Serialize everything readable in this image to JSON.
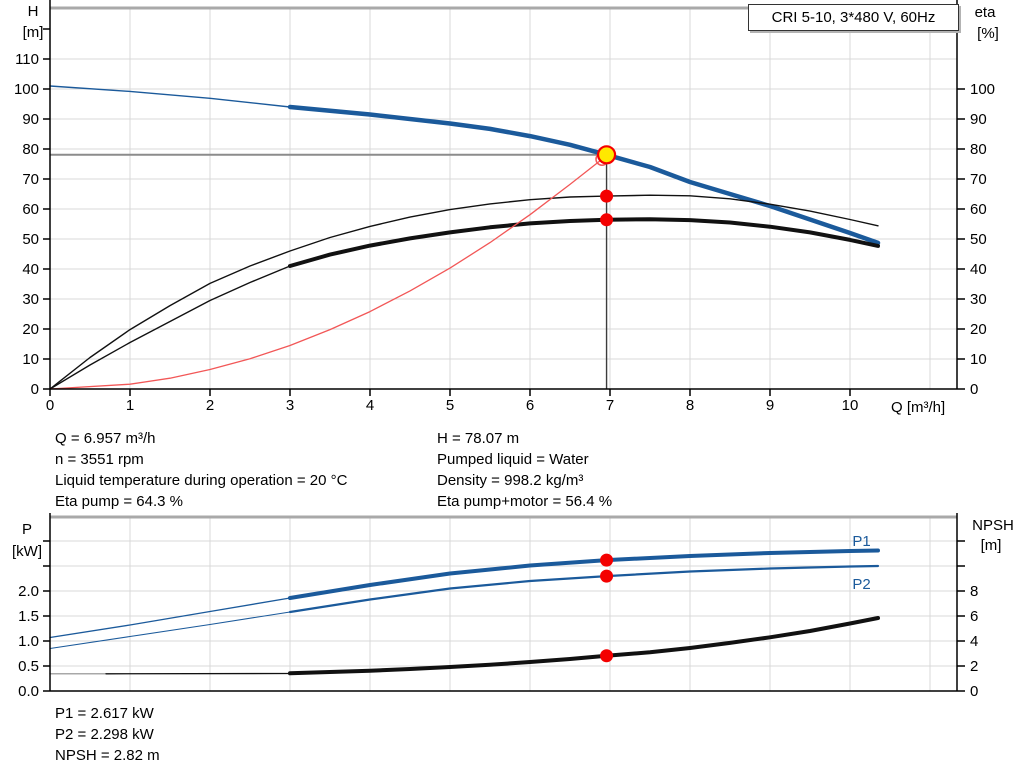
{
  "title_box": {
    "label": "CRI 5-10, 3*480 V, 60Hz"
  },
  "colors": {
    "curve_blue": "#1b5a9b",
    "curve_black": "#111111",
    "curve_red": "#f25757",
    "dot_red": "#f40000",
    "duty_yellow": "#ffe800",
    "grid": "#d8d8d8",
    "axis": "#000000",
    "crosshair_h": "#8c8c8c",
    "crosshair_v": "#3c3c3c",
    "top_border": "#a9a9a9"
  },
  "chart_data": [
    {
      "id": "head-chart",
      "type": "line",
      "title": "CRI 5-10, 3*480 V, 60Hz",
      "x_axis": {
        "label": "Q [m³/h]",
        "range": [
          0,
          11.3375
        ],
        "ticks": [
          [
            "0",
            0
          ],
          [
            "1",
            1
          ],
          [
            "2",
            2
          ],
          [
            "3",
            3
          ],
          [
            "4",
            4
          ],
          [
            "5",
            5
          ],
          [
            "6",
            6
          ],
          [
            "7",
            7
          ],
          [
            "8",
            8
          ],
          [
            "9",
            9
          ],
          [
            "10",
            10
          ]
        ],
        "grid_values": [
          1,
          2,
          3,
          4,
          5,
          6,
          7,
          8,
          9,
          10,
          11
        ]
      },
      "y_left": {
        "label_lines": [
          "H",
          "[m]"
        ],
        "range": [
          0,
          127
        ],
        "ticks": [
          [
            "0",
            0
          ],
          [
            "10",
            10
          ],
          [
            "20",
            20
          ],
          [
            "30",
            30
          ],
          [
            "40",
            40
          ],
          [
            "50",
            50
          ],
          [
            "60",
            60
          ],
          [
            "70",
            70
          ],
          [
            "80",
            80
          ],
          [
            "90",
            90
          ],
          [
            "100",
            100
          ],
          [
            "110",
            110
          ]
        ],
        "minor_ticks": [
          120
        ],
        "grid_values": [
          10,
          20,
          30,
          40,
          50,
          60,
          70,
          80,
          90,
          100,
          110
        ]
      },
      "y_right": {
        "label_lines": [
          "eta",
          "[%]"
        ],
        "range": [
          0,
          127
        ],
        "ticks": [
          [
            "0",
            0
          ],
          [
            "10",
            10
          ],
          [
            "20",
            20
          ],
          [
            "30",
            30
          ],
          [
            "40",
            40
          ],
          [
            "50",
            50
          ],
          [
            "60",
            60
          ],
          [
            "70",
            70
          ],
          [
            "80",
            80
          ],
          [
            "90",
            90
          ],
          [
            "100",
            100
          ]
        ],
        "minor_ticks": []
      },
      "series": [
        {
          "name": "pump-curve-thin",
          "axis": "left",
          "color_key": "curve_blue",
          "width": 1.4,
          "points": [
            [
              0,
              101
            ],
            [
              1,
              99.2
            ],
            [
              2,
              96.9
            ],
            [
              3,
              94
            ]
          ]
        },
        {
          "name": "pump-curve",
          "axis": "left",
          "color_key": "curve_blue",
          "width": 4.5,
          "points": [
            [
              3,
              94
            ],
            [
              4,
              91.5
            ],
            [
              5,
              88.5
            ],
            [
              5.5,
              86.7
            ],
            [
              6,
              84.3
            ],
            [
              6.5,
              81.4
            ],
            [
              6.957,
              78.07
            ],
            [
              7.5,
              74
            ],
            [
              8,
              69
            ],
            [
              8.5,
              65
            ],
            [
              9,
              61
            ],
            [
              9.5,
              56.5
            ],
            [
              10,
              52
            ],
            [
              10.35,
              48.7
            ]
          ]
        },
        {
          "name": "eta-pump-curve",
          "axis": "right",
          "color_key": "curve_black",
          "width": 1.4,
          "points": [
            [
              0,
              0
            ],
            [
              0.5,
              10.5
            ],
            [
              1,
              19.8
            ],
            [
              1.5,
              27.8
            ],
            [
              2,
              35.2
            ],
            [
              2.5,
              41
            ],
            [
              3,
              46
            ],
            [
              3.5,
              50.5
            ],
            [
              4,
              54.2
            ],
            [
              4.5,
              57.3
            ],
            [
              5,
              59.8
            ],
            [
              5.5,
              61.7
            ],
            [
              6,
              63.1
            ],
            [
              6.5,
              64
            ],
            [
              6.957,
              64.3
            ],
            [
              7.5,
              64.6
            ],
            [
              8,
              64.4
            ],
            [
              8.5,
              63.4
            ],
            [
              9,
              61.6
            ],
            [
              9.5,
              59.3
            ],
            [
              10,
              56.5
            ],
            [
              10.35,
              54.4
            ]
          ]
        },
        {
          "name": "eta-pump-motor-curve-thin",
          "axis": "right",
          "color_key": "curve_black",
          "width": 1.4,
          "points": [
            [
              0,
              0
            ],
            [
              0.5,
              8
            ],
            [
              1,
              15.5
            ],
            [
              1.5,
              22.5
            ],
            [
              2,
              29.5
            ],
            [
              2.5,
              35.5
            ],
            [
              3,
              41
            ]
          ]
        },
        {
          "name": "eta-pump-motor-curve",
          "axis": "right",
          "color_key": "curve_black",
          "width": 4,
          "points": [
            [
              3,
              41
            ],
            [
              3.5,
              44.8
            ],
            [
              4,
              47.8
            ],
            [
              4.5,
              50.2
            ],
            [
              5,
              52.2
            ],
            [
              5.5,
              53.9
            ],
            [
              6,
              55.2
            ],
            [
              6.5,
              56
            ],
            [
              6.957,
              56.4
            ],
            [
              7.5,
              56.6
            ],
            [
              8,
              56.3
            ],
            [
              8.5,
              55.5
            ],
            [
              9,
              54.1
            ],
            [
              9.5,
              52.2
            ],
            [
              10,
              49.7
            ],
            [
              10.35,
              47.7
            ]
          ]
        },
        {
          "name": "system-curve",
          "axis": "left",
          "color_key": "curve_red",
          "width": 1.3,
          "points": [
            [
              0,
              0
            ],
            [
              1,
              1.6
            ],
            [
              1.5,
              3.6
            ],
            [
              2,
              6.5
            ],
            [
              2.5,
              10.1
            ],
            [
              3,
              14.5
            ],
            [
              3.5,
              19.8
            ],
            [
              4,
              25.8
            ],
            [
              4.5,
              32.7
            ],
            [
              5,
              40.3
            ],
            [
              5.5,
              48.8
            ],
            [
              6,
              58.1
            ],
            [
              6.5,
              68.2
            ],
            [
              6.9,
              76.6
            ]
          ]
        }
      ],
      "crosshair": {
        "q": 6.957,
        "v": 78.07
      },
      "markers": [
        {
          "name": "system-curve-end-ring",
          "shape": "ring",
          "axis": "left",
          "q": 6.9,
          "v": 76.6,
          "r": 6,
          "stroke_key": "curve_red",
          "sw": 1.5
        },
        {
          "name": "duty-point",
          "shape": "dot",
          "axis": "left",
          "q": 6.957,
          "v": 78.07,
          "r": 8.5,
          "fill_key": "duty_yellow",
          "stroke_key": "dot_red",
          "sw": 2.2
        },
        {
          "name": "eta-pump-operating-dot",
          "shape": "dot",
          "axis": "right",
          "q": 6.957,
          "v": 64.3,
          "r": 6.5,
          "fill_key": "dot_red"
        },
        {
          "name": "eta-pump-motor-operating-dot",
          "shape": "dot",
          "axis": "right",
          "q": 6.957,
          "v": 56.4,
          "r": 6.5,
          "fill_key": "dot_red"
        }
      ],
      "curve_labels": []
    },
    {
      "id": "power-chart",
      "type": "line",
      "x_axis": {
        "label": "",
        "range": [
          0,
          11.3375
        ],
        "ticks": [],
        "grid_values": [
          1,
          2,
          3,
          4,
          5,
          6,
          7,
          8,
          9,
          10,
          11
        ]
      },
      "y_left": {
        "label_lines": [
          "P",
          "[kW]"
        ],
        "range": [
          0,
          3.48
        ],
        "ticks": [
          [
            "0.0",
            0
          ],
          [
            "0.5",
            0.5
          ],
          [
            "1.0",
            1
          ],
          [
            "1.5",
            1.5
          ],
          [
            "2.0",
            2
          ]
        ],
        "minor_ticks": [
          2.5,
          3.0
        ],
        "grid_values": [
          0.5,
          1,
          1.5,
          2,
          2.5,
          3
        ]
      },
      "y_right": {
        "label_lines": [
          "NPSH",
          "[m]"
        ],
        "range": [
          0,
          13.92
        ],
        "ticks": [
          [
            "0",
            0
          ],
          [
            "2",
            2
          ],
          [
            "4",
            4
          ],
          [
            "6",
            6
          ],
          [
            "8",
            8
          ]
        ],
        "minor_ticks": [
          10,
          12
        ]
      },
      "series": [
        {
          "name": "p1-curve-thin",
          "axis": "left",
          "color_key": "curve_blue",
          "width": 1.3,
          "points": [
            [
              0,
              1.07
            ],
            [
              1,
              1.32
            ],
            [
              2,
              1.59
            ],
            [
              3,
              1.86
            ]
          ]
        },
        {
          "name": "p1-curve",
          "axis": "left",
          "color_key": "curve_blue",
          "width": 4,
          "points": [
            [
              3,
              1.86
            ],
            [
              4,
              2.12
            ],
            [
              5,
              2.35
            ],
            [
              6,
              2.51
            ],
            [
              6.957,
              2.617
            ],
            [
              8,
              2.7
            ],
            [
              9,
              2.76
            ],
            [
              10,
              2.8
            ],
            [
              10.35,
              2.81
            ]
          ]
        },
        {
          "name": "p2-curve-thin",
          "axis": "left",
          "color_key": "curve_blue",
          "width": 1.1,
          "points": [
            [
              0,
              0.85
            ],
            [
              1,
              1.09
            ],
            [
              2,
              1.33
            ],
            [
              3,
              1.58
            ]
          ]
        },
        {
          "name": "p2-curve",
          "axis": "left",
          "color_key": "curve_blue",
          "width": 2.2,
          "points": [
            [
              3,
              1.58
            ],
            [
              4,
              1.83
            ],
            [
              5,
              2.05
            ],
            [
              6,
              2.2
            ],
            [
              6.957,
              2.298
            ],
            [
              8,
              2.39
            ],
            [
              9,
              2.45
            ],
            [
              10,
              2.49
            ],
            [
              10.35,
              2.5
            ]
          ]
        },
        {
          "name": "npsh-curve-gray",
          "axis": "right",
          "color_key": "crosshair_h",
          "width": 1.2,
          "points": [
            [
              0,
              1.38
            ],
            [
              0.7,
              1.38
            ]
          ]
        },
        {
          "name": "npsh-curve-thin",
          "axis": "right",
          "color_key": "curve_black",
          "width": 1.3,
          "points": [
            [
              0.7,
              1.38
            ],
            [
              3,
              1.4
            ]
          ]
        },
        {
          "name": "npsh-curve",
          "axis": "right",
          "color_key": "curve_black",
          "width": 4,
          "points": [
            [
              3,
              1.42
            ],
            [
              3.5,
              1.52
            ],
            [
              4,
              1.62
            ],
            [
              4.5,
              1.76
            ],
            [
              5,
              1.92
            ],
            [
              5.5,
              2.1
            ],
            [
              6,
              2.32
            ],
            [
              6.5,
              2.56
            ],
            [
              6.957,
              2.82
            ],
            [
              7.5,
              3.1
            ],
            [
              8,
              3.44
            ],
            [
              8.5,
              3.85
            ],
            [
              9,
              4.3
            ],
            [
              9.5,
              4.8
            ],
            [
              10,
              5.4
            ],
            [
              10.35,
              5.84
            ]
          ]
        }
      ],
      "markers": [
        {
          "name": "p1-operating-dot",
          "shape": "dot",
          "axis": "left",
          "q": 6.957,
          "v": 2.617,
          "r": 6.5,
          "fill_key": "dot_red"
        },
        {
          "name": "p2-operating-dot",
          "shape": "dot",
          "axis": "left",
          "q": 6.957,
          "v": 2.298,
          "r": 6.5,
          "fill_key": "dot_red"
        },
        {
          "name": "npsh-operating-dot",
          "shape": "dot",
          "axis": "right",
          "q": 6.957,
          "v": 2.82,
          "r": 6.5,
          "fill_key": "dot_red"
        }
      ],
      "curve_labels": [
        {
          "text": "P1",
          "axis": "left",
          "q": 10.03,
          "v": 2.9,
          "color_key": "curve_blue"
        },
        {
          "text": "P2",
          "axis": "left",
          "q": 10.03,
          "v": 2.04,
          "color_key": "curve_blue"
        }
      ]
    }
  ],
  "info_panel": {
    "left": [
      "Q = 6.957 m³/h",
      "n = 3551 rpm",
      "Liquid temperature during operation = 20 °C",
      "Eta pump = 64.3 %"
    ],
    "right": [
      "H = 78.07 m",
      "Pumped liquid = Water",
      "Density = 998.2 kg/m³",
      "Eta pump+motor = 56.4 %"
    ]
  },
  "bottom_panel": {
    "lines": [
      "P1 = 2.617 kW",
      "P2 = 2.298 kW",
      "NPSH = 2.82 m"
    ]
  }
}
